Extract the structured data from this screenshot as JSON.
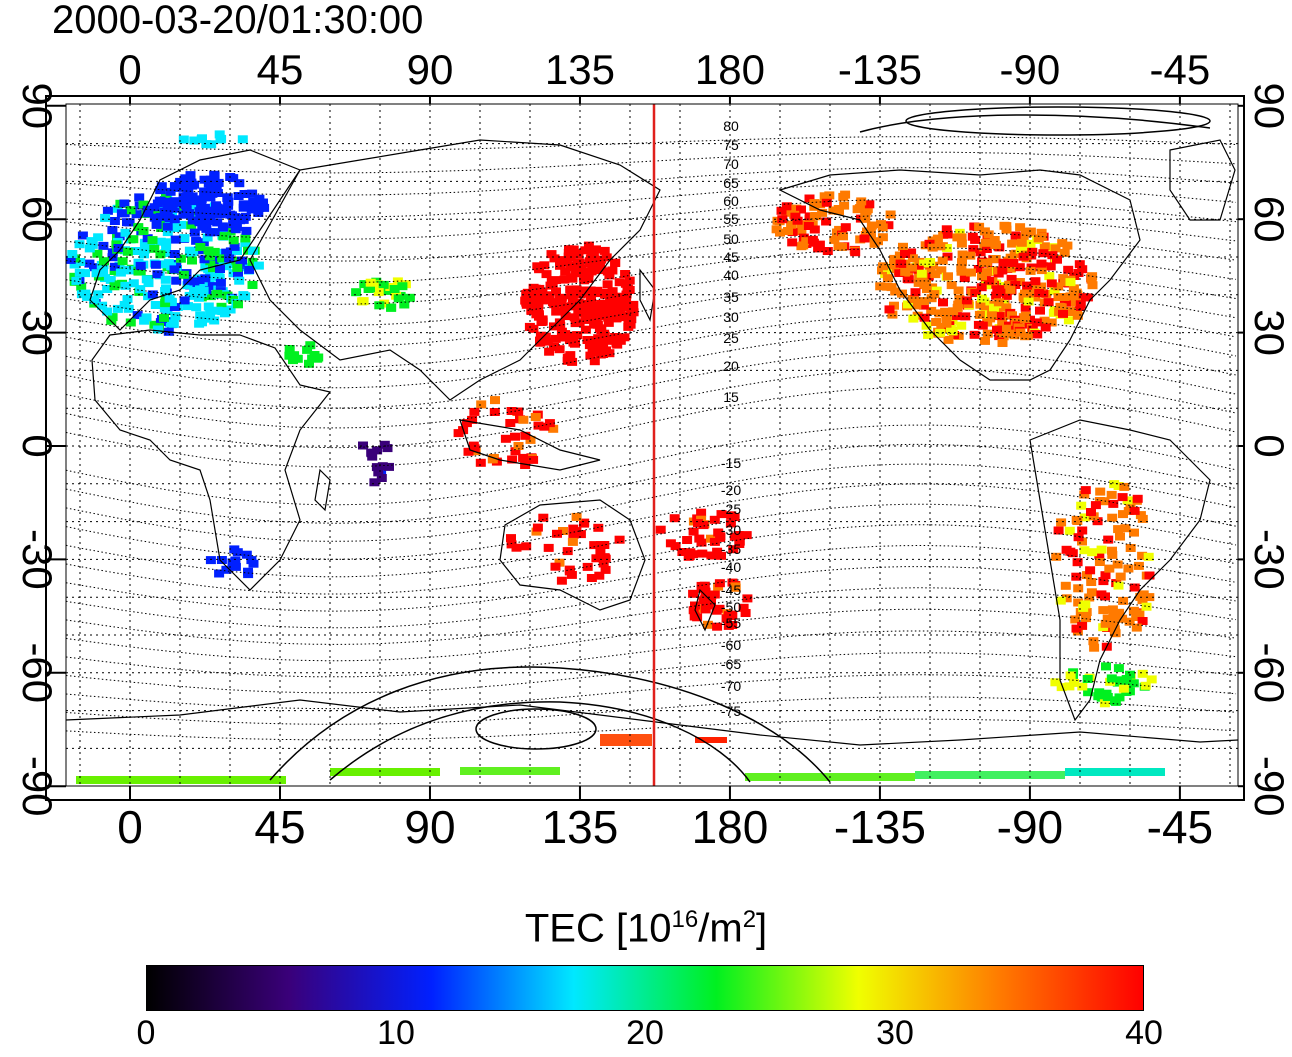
{
  "title": "2000-03-20/01:30:00",
  "map": {
    "top_lon_ticks": [
      "0",
      "45",
      "90",
      "135",
      "180",
      "-135",
      "-90",
      "-45"
    ],
    "bottom_lon_ticks": [
      "0",
      "45",
      "90",
      "135",
      "180",
      "-135",
      "-90",
      "-45"
    ],
    "left_lat_ticks": [
      "90",
      "60",
      "30",
      "0",
      "-30",
      "-60",
      "-90"
    ],
    "right_lat_ticks": [
      "90",
      "60",
      "30",
      "0",
      "-30",
      "-60",
      "-90"
    ],
    "contour_labels": [
      "80",
      "75",
      "70",
      "65",
      "60",
      "55",
      "50",
      "45",
      "40",
      "35",
      "30",
      "25",
      "20",
      "15",
      "-15",
      "-20",
      "-25",
      "-30",
      "-35",
      "-40",
      "-45",
      "-50",
      "-55",
      "-60",
      "-65",
      "-70",
      "-75"
    ],
    "terminator_color": "#e0201c"
  },
  "colorbar": {
    "label_prefix": "TEC  [10",
    "label_sup1": "16",
    "label_mid": "/m",
    "label_sup2": "2",
    "label_suffix": "]",
    "ticks": [
      "0",
      "10",
      "20",
      "30",
      "40"
    ],
    "colors": [
      "#000000",
      "#3a007a",
      "#0020ff",
      "#00e8ff",
      "#00f020",
      "#f0ff00",
      "#ff7a00",
      "#ff0000"
    ]
  }
}
